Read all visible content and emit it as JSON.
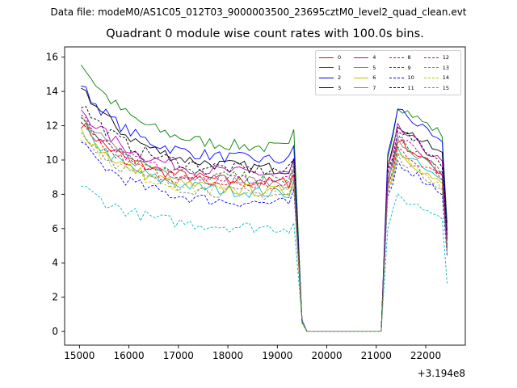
{
  "suptitle": "Data file: modeM0/AS1C05_012T03_9000003500_23695cztM0_level2_quad_clean.evt",
  "chart_data": {
    "type": "line",
    "title": "Quadrant 0 module wise count rates with 100.0s bins.",
    "xlabel": "",
    "ylabel": "",
    "x_offset_label": "+3.194e8",
    "xlim": [
      14700,
      22800
    ],
    "ylim": [
      -0.8,
      16.6
    ],
    "x_ticks": [
      15000,
      16000,
      17000,
      18000,
      19000,
      20000,
      21000,
      22000
    ],
    "y_ticks": [
      0,
      2,
      4,
      6,
      8,
      10,
      12,
      14,
      16
    ],
    "x_tick_labels": [
      "15000",
      "16000",
      "17000",
      "18000",
      "19000",
      "20000",
      "21000",
      "22000"
    ],
    "y_tick_labels": [
      "0",
      "2",
      "4",
      "6",
      "8",
      "10",
      "12",
      "14",
      "16"
    ],
    "legend_position": "top-right",
    "bin_width": 100,
    "x_start": 15033,
    "segment_1_end": 19400,
    "gap_end": 21133,
    "segment_2_end": 22433,
    "series": [
      {
        "name": "0",
        "color": "#ff0000",
        "dashed": false,
        "start": 12.2,
        "plateau": 8.6,
        "peak": 11.3,
        "end": 9.0,
        "last": 4.9
      },
      {
        "name": "1",
        "color": "#008000",
        "dashed": false,
        "start": 15.7,
        "plateau": 10.6,
        "peak": 13.3,
        "end": 11.3,
        "last": 6.3
      },
      {
        "name": "2",
        "color": "#0000ff",
        "dashed": false,
        "start": 14.4,
        "plateau": 9.9,
        "peak": 13.2,
        "end": 10.6,
        "last": 5.9
      },
      {
        "name": "3",
        "color": "#000000",
        "dashed": false,
        "start": 14.4,
        "plateau": 9.4,
        "peak": 12.2,
        "end": 10.1,
        "last": 5.6
      },
      {
        "name": "4",
        "color": "#bf00bf",
        "dashed": false,
        "start": 13.0,
        "plateau": 9.1,
        "peak": 12.0,
        "end": 9.6,
        "last": 5.3
      },
      {
        "name": "5",
        "color": "#00bfbf",
        "dashed": false,
        "start": 12.0,
        "plateau": 8.0,
        "peak": 10.7,
        "end": 8.5,
        "last": 4.7
      },
      {
        "name": "6",
        "color": "#bfbf00",
        "dashed": false,
        "start": 11.8,
        "plateau": 8.1,
        "peak": 10.6,
        "end": 8.3,
        "last": 4.6
      },
      {
        "name": "7",
        "color": "#808080",
        "dashed": false,
        "start": 12.5,
        "plateau": 8.6,
        "peak": 11.2,
        "end": 8.9,
        "last": 4.9
      },
      {
        "name": "8",
        "color": "#ff0000",
        "dashed": true,
        "start": 12.0,
        "plateau": 8.4,
        "peak": 10.8,
        "end": 8.7,
        "last": 4.8
      },
      {
        "name": "9",
        "color": "#008000",
        "dashed": true,
        "start": 12.6,
        "plateau": 8.8,
        "peak": 11.4,
        "end": 9.1,
        "last": 5.0
      },
      {
        "name": "10",
        "color": "#0000ff",
        "dashed": true,
        "start": 10.9,
        "plateau": 7.4,
        "peak": 10.0,
        "end": 7.9,
        "last": 4.4
      },
      {
        "name": "11",
        "color": "#000000",
        "dashed": true,
        "start": 13.3,
        "plateau": 9.3,
        "peak": 12.0,
        "end": 9.6,
        "last": 5.3
      },
      {
        "name": "12",
        "color": "#bf00bf",
        "dashed": true,
        "start": 12.6,
        "plateau": 8.7,
        "peak": 11.5,
        "end": 9.0,
        "last": 5.0
      },
      {
        "name": "13",
        "color": "#00bfbf",
        "dashed": true,
        "start": 8.5,
        "plateau": 6.0,
        "peak": 7.9,
        "end": 6.6,
        "last": 2.8
      },
      {
        "name": "14",
        "color": "#bfbf00",
        "dashed": true,
        "start": 11.5,
        "plateau": 8.0,
        "peak": 10.4,
        "end": 8.3,
        "last": 4.6
      },
      {
        "name": "15",
        "color": "#808080",
        "dashed": true,
        "start": 11.6,
        "plateau": 7.9,
        "peak": 10.3,
        "end": 8.2,
        "last": 4.6
      }
    ]
  }
}
